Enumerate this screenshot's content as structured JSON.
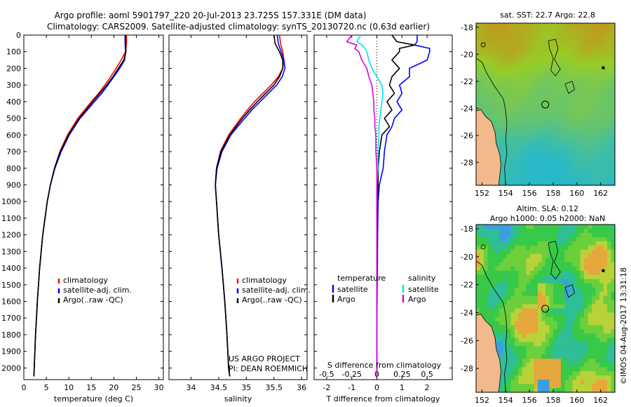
{
  "title": {
    "line1": "Argo profile: aoml 5901797_220 20-Jul-2013 23.725S 157.331E (DM data)",
    "line2": "Climatology: CARS2009. Satellite-adjusted climatology: synTS_20130720.nc (0.63d earlier)"
  },
  "colors": {
    "climatology": "#ff0000",
    "satellite": "#0000ff",
    "argo": "#000000",
    "sat_salinity": "#00e5e5",
    "argo_salinity": "#e000e0",
    "land": "#f2b98c"
  },
  "chart_data": [
    {
      "type": "line",
      "name": "temperature",
      "xlabel": "temperature (deg C)",
      "ylabel": "",
      "xlim": [
        0,
        31
      ],
      "ylim": [
        2070,
        0
      ],
      "xticks": [
        0,
        5,
        10,
        15,
        20,
        25,
        30
      ],
      "yticks": [
        0,
        100,
        200,
        300,
        400,
        500,
        600,
        700,
        800,
        900,
        1000,
        1100,
        1200,
        1300,
        1400,
        1500,
        1600,
        1700,
        1800,
        1900,
        2000
      ],
      "legend": [
        "climatology",
        "satellite-adj. clim.",
        "Argo(..raw -QC)"
      ],
      "legend_position": "lower-center",
      "series": [
        {
          "name": "climatology",
          "color": "red",
          "depth": [
            0,
            50,
            100,
            150,
            200,
            250,
            300,
            350,
            400,
            450,
            500,
            600,
            700,
            800,
            900,
            1000,
            1200,
            1400,
            1600,
            1800,
            2000,
            2050
          ],
          "values": [
            22.8,
            22.8,
            22.6,
            21.6,
            20.5,
            19.3,
            18.0,
            16.6,
            15.0,
            13.5,
            12.0,
            9.7,
            8.0,
            6.8,
            5.9,
            5.2,
            4.2,
            3.5,
            3.0,
            2.6,
            2.3,
            2.25
          ]
        },
        {
          "name": "satellite-adj. clim.",
          "color": "blue",
          "depth": [
            0,
            50,
            100,
            150,
            200,
            250,
            300,
            350,
            400,
            450,
            500,
            600,
            700,
            800,
            900,
            1000,
            1200,
            1400,
            1600,
            1800,
            2000,
            2050
          ],
          "values": [
            22.5,
            22.5,
            22.6,
            22.4,
            21.3,
            20.0,
            18.7,
            17.3,
            15.7,
            14.1,
            12.5,
            10.1,
            8.3,
            6.9,
            5.9,
            5.2,
            4.2,
            3.5,
            3.0,
            2.6,
            2.3,
            2.25
          ]
        },
        {
          "name": "Argo(..raw -QC)",
          "color": "black",
          "depth": [
            0,
            50,
            100,
            150,
            200,
            250,
            300,
            350,
            400,
            450,
            500,
            600,
            700,
            800,
            900,
            1000,
            1200,
            1400,
            1600,
            1800,
            2000,
            2050
          ],
          "values": [
            22.6,
            22.6,
            22.7,
            22.2,
            21.0,
            19.8,
            18.4,
            16.9,
            15.3,
            13.8,
            12.3,
            9.9,
            8.1,
            6.8,
            5.9,
            5.2,
            4.2,
            3.5,
            3.0,
            2.6,
            2.3,
            2.25
          ]
        }
      ]
    },
    {
      "type": "line",
      "name": "salinity",
      "xlabel": "salinity",
      "xlim": [
        33.6,
        36.1
      ],
      "ylim": [
        2070,
        0
      ],
      "xticks": [
        34,
        34.5,
        35,
        35.5,
        36
      ],
      "legend": [
        "climatology",
        "satellite-adj. clim.",
        "Argo(..raw -QC)"
      ],
      "legend_position": "lower-center",
      "series": [
        {
          "name": "climatology",
          "color": "red",
          "depth": [
            0,
            50,
            100,
            150,
            200,
            250,
            300,
            350,
            400,
            450,
            500,
            600,
            700,
            800,
            900,
            1000,
            1200,
            1400,
            1600,
            1800,
            2000,
            2050
          ],
          "values": [
            35.6,
            35.62,
            35.66,
            35.68,
            35.66,
            35.58,
            35.45,
            35.3,
            35.15,
            35.02,
            34.9,
            34.68,
            34.53,
            34.46,
            34.44,
            34.46,
            34.5,
            34.56,
            34.61,
            34.65,
            34.68,
            34.7
          ]
        },
        {
          "name": "satellite-adj. clim.",
          "color": "blue",
          "depth": [
            0,
            50,
            100,
            150,
            200,
            250,
            300,
            350,
            400,
            450,
            500,
            600,
            700,
            800,
            900,
            1000,
            1200,
            1400,
            1600,
            1800,
            2000,
            2050
          ],
          "values": [
            35.56,
            35.58,
            35.63,
            35.68,
            35.7,
            35.65,
            35.55,
            35.4,
            35.25,
            35.1,
            34.97,
            34.72,
            34.56,
            34.47,
            34.44,
            34.46,
            34.5,
            34.56,
            34.61,
            34.65,
            34.68,
            34.7
          ]
        },
        {
          "name": "Argo(..raw -QC)",
          "color": "black",
          "depth": [
            0,
            50,
            100,
            150,
            200,
            250,
            300,
            350,
            400,
            450,
            500,
            600,
            700,
            800,
            900,
            1000,
            1200,
            1400,
            1600,
            1800,
            2000,
            2050
          ],
          "values": [
            35.5,
            35.52,
            35.6,
            35.66,
            35.66,
            35.6,
            35.5,
            35.35,
            35.2,
            35.06,
            34.93,
            34.7,
            34.54,
            34.46,
            34.44,
            34.46,
            34.5,
            34.56,
            34.61,
            34.65,
            34.68,
            34.7
          ]
        }
      ],
      "annotation": [
        "US ARGO PROJECT",
        "PI: DEAN ROEMMICH"
      ]
    },
    {
      "type": "line",
      "name": "difference",
      "xlabel": "T difference from climatology",
      "xlabel_top": "S difference from climatology",
      "xlim": [
        -2.5,
        3.0
      ],
      "ylim": [
        2070,
        0
      ],
      "xticks": [
        -2,
        -1,
        0,
        1,
        2
      ],
      "xticks_s": [
        "-0.5",
        "-0.25",
        "0",
        "0.25",
        "0.5"
      ],
      "legend_temperature": {
        "title": "temperature",
        "items": [
          "satellite",
          "Argo"
        ]
      },
      "legend_salinity": {
        "title": "salinity",
        "items": [
          "satellite",
          "Argo"
        ]
      },
      "series": [
        {
          "name": "temperature satellite",
          "color": "blue",
          "depth": [
            0,
            40,
            60,
            80,
            100,
            150,
            200,
            250,
            300,
            350,
            400,
            450,
            500,
            550,
            600,
            700,
            800,
            900,
            1000,
            1200,
            1400,
            1600,
            1800,
            2000,
            2050
          ],
          "values": [
            1.6,
            1.6,
            1.5,
            2.1,
            2.1,
            2.0,
            1.3,
            1.3,
            0.9,
            1.0,
            0.8,
            1.0,
            0.7,
            0.6,
            0.4,
            0.3,
            0.25,
            0.1,
            0.05,
            0.03,
            0.02,
            0.01,
            0,
            0,
            0
          ]
        },
        {
          "name": "temperature Argo",
          "color": "black",
          "depth": [
            0,
            40,
            60,
            80,
            100,
            150,
            200,
            250,
            300,
            350,
            400,
            450,
            500,
            550,
            600,
            700,
            800,
            900,
            1000,
            1200,
            1400,
            1600,
            1800,
            2000,
            2050
          ],
          "values": [
            0.6,
            0.8,
            1.5,
            0.9,
            0.9,
            0.6,
            0.9,
            0.6,
            0.5,
            0.7,
            0.4,
            0.6,
            0.3,
            0.5,
            0.2,
            0.1,
            0.05,
            0.05,
            0.02,
            0.02,
            0.01,
            0,
            0,
            0,
            0
          ]
        },
        {
          "name": "salinity satellite",
          "color": "cyan",
          "depth": [
            0,
            40,
            60,
            80,
            100,
            150,
            200,
            250,
            300,
            350,
            400,
            450,
            500,
            550,
            600,
            700,
            800,
            900,
            1000,
            1200,
            1400,
            1600,
            1800,
            2000,
            2050
          ],
          "values": [
            -0.16,
            -0.2,
            -0.15,
            -0.12,
            -0.1,
            -0.08,
            -0.05,
            0.0,
            0.05,
            0.06,
            0.05,
            0.04,
            0.03,
            0.02,
            0.02,
            0.01,
            0.01,
            0.0,
            0.0,
            0.0,
            0.0,
            0.0,
            0.0,
            0.0,
            0.0
          ]
        },
        {
          "name": "salinity Argo",
          "color": "magenta",
          "depth": [
            0,
            40,
            60,
            80,
            100,
            150,
            200,
            250,
            300,
            350,
            400,
            450,
            500,
            550,
            600,
            700,
            800,
            900,
            1000,
            1200,
            1400,
            1600,
            1800,
            2000,
            2050
          ],
          "values": [
            -0.25,
            -0.3,
            -0.2,
            -0.22,
            -0.18,
            -0.15,
            -0.1,
            -0.08,
            -0.05,
            -0.04,
            -0.03,
            -0.03,
            -0.02,
            -0.02,
            -0.01,
            -0.01,
            0.0,
            0.0,
            0.0,
            0.0,
            0.0,
            0.0,
            0.0,
            0.0,
            0.0
          ]
        }
      ]
    },
    {
      "type": "heatmap",
      "name": "sst-map",
      "title": "sat. SST: 22.7  Argo: 22.8",
      "xticks": [
        152,
        154,
        156,
        158,
        160,
        162
      ],
      "yticks": [
        -18,
        -20,
        -22,
        -24,
        -26,
        -28
      ],
      "xlim": [
        151.5,
        163.2
      ],
      "ylim": [
        -29.7,
        -17.7
      ],
      "argo_position": [
        157.331,
        -23.725
      ]
    },
    {
      "type": "heatmap",
      "name": "sla-map",
      "title": "Altim. SLA: 0.12",
      "title2": "Argo h1000: 0.05 h2000: NaN",
      "xticks": [
        152,
        154,
        156,
        158,
        160,
        162
      ],
      "yticks": [
        -18,
        -20,
        -22,
        -24,
        -26,
        -28
      ],
      "xlim": [
        151.5,
        163.2
      ],
      "ylim": [
        -29.7,
        -17.7
      ],
      "argo_position": [
        157.331,
        -23.725
      ]
    }
  ],
  "stamp": "©IMOS 04-Aug-2017 13:31:18"
}
